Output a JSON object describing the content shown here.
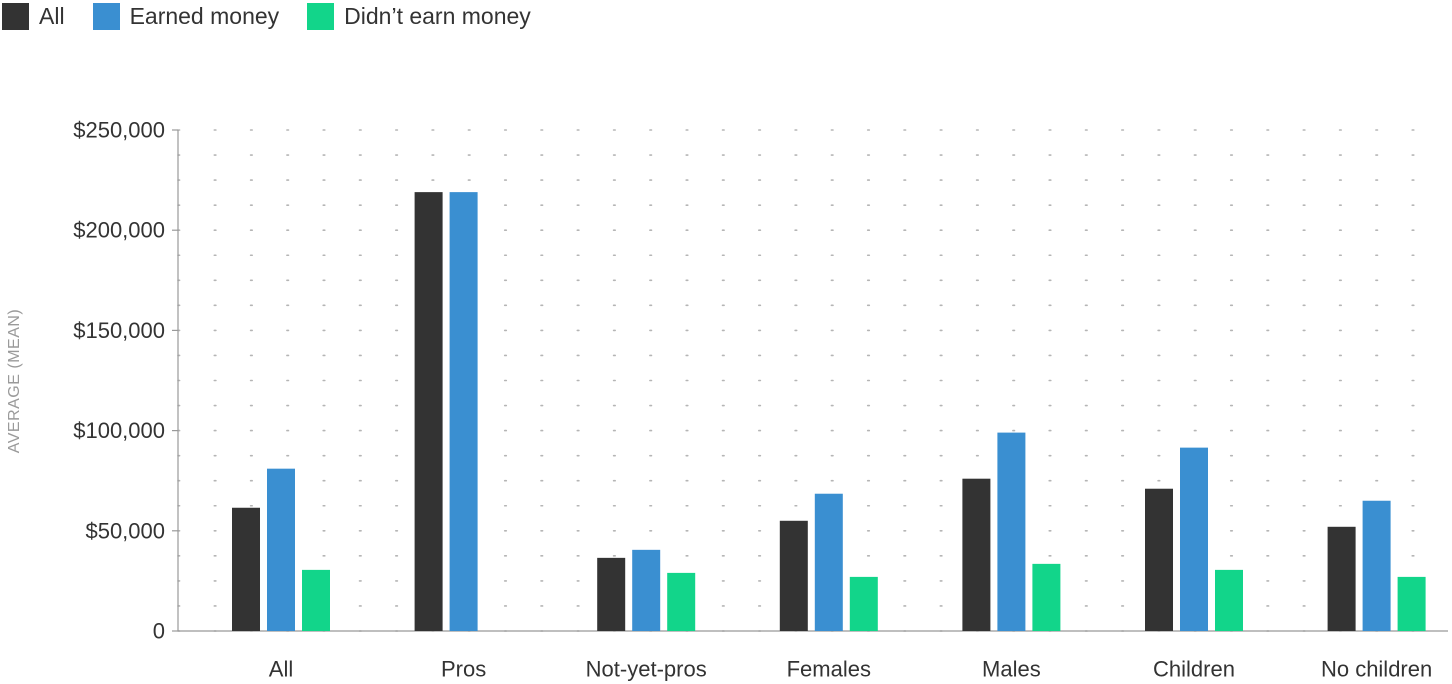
{
  "chart_data": {
    "type": "bar",
    "title": "",
    "xlabel": "",
    "ylabel": "AVERAGE (MEAN)",
    "ylim": [
      0,
      250000
    ],
    "yticks": [
      0,
      50000,
      100000,
      150000,
      200000,
      250000
    ],
    "ytick_labels": [
      "0",
      "$50,000",
      "$100,000",
      "$150,000",
      "$200,000",
      "$250,000"
    ],
    "grid": "dotted",
    "legend_position": "top-left",
    "categories": [
      "All",
      "Pros",
      "Not-yet-pros",
      "Females",
      "Males",
      "Children",
      "No children"
    ],
    "series": [
      {
        "name": "All",
        "color": "#333333",
        "values": [
          61500,
          219000,
          36500,
          55000,
          76000,
          71000,
          52000
        ]
      },
      {
        "name": "Earned money",
        "color": "#3a8fd1",
        "values": [
          81000,
          219000,
          40500,
          68500,
          99000,
          91500,
          65000
        ]
      },
      {
        "name": "Didn’t earn money",
        "color": "#12d58a",
        "values": [
          30500,
          null,
          29000,
          27000,
          33500,
          30500,
          27000
        ]
      }
    ]
  }
}
